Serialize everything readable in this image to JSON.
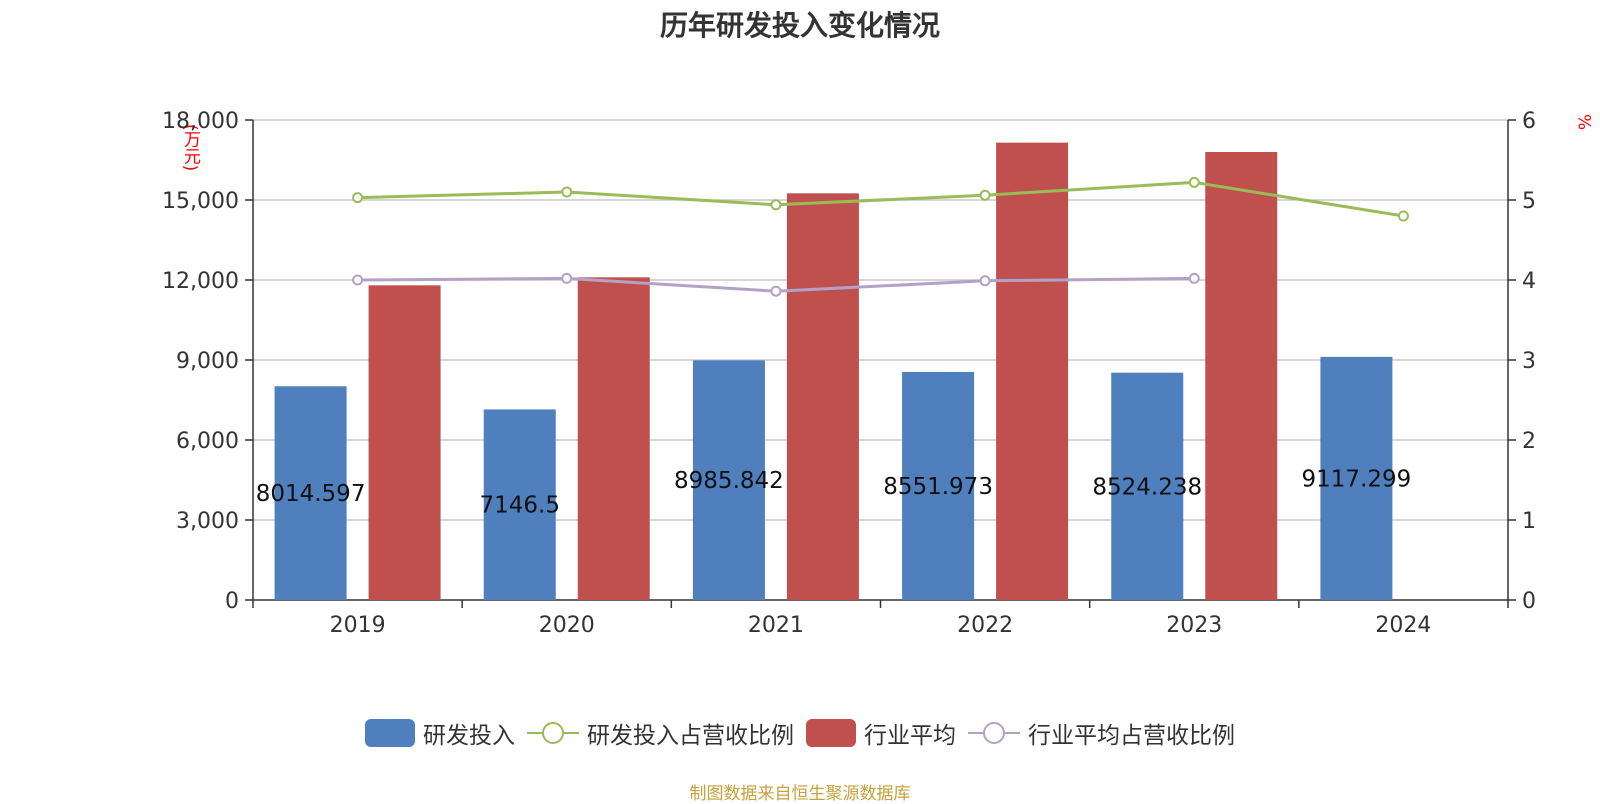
{
  "chart_data": {
    "type": "bar",
    "title": "历年研发投入变化情况",
    "categories": [
      "2019",
      "2020",
      "2021",
      "2022",
      "2023",
      "2024"
    ],
    "y_left": {
      "label": "(万元)",
      "ylim": [
        0,
        18000
      ],
      "ticks": [
        0,
        3000,
        6000,
        9000,
        12000,
        15000,
        18000
      ],
      "tick_labels": [
        "0",
        "3,000",
        "6,000",
        "9,000",
        "12,000",
        "15,000",
        "18,000"
      ]
    },
    "y_right": {
      "label": "%",
      "ylim": [
        0,
        6
      ],
      "ticks": [
        0,
        1,
        2,
        3,
        4,
        5,
        6
      ],
      "tick_labels": [
        "0",
        "1",
        "2",
        "3",
        "4",
        "5",
        "6"
      ]
    },
    "grid": true,
    "legend_position": "bottom",
    "series": [
      {
        "name": "研发投入",
        "type": "bar",
        "axis": "left",
        "color": "#4f7fbd",
        "values": [
          8014.597,
          7146.5,
          8985.842,
          8551.973,
          8524.238,
          9117.299
        ],
        "data_labels": [
          "8014.597",
          "7146.5",
          "8985.842",
          "8551.973",
          "8524.238",
          "9117.299"
        ]
      },
      {
        "name": "研发投入占营收比例",
        "type": "line",
        "axis": "right",
        "color": "#9bbb59",
        "values": [
          5.03,
          5.1,
          4.94,
          5.06,
          5.22,
          4.8
        ]
      },
      {
        "name": "行业平均",
        "type": "bar",
        "axis": "left",
        "color": "#c0504d",
        "values": [
          11800,
          12100,
          15250,
          17150,
          16800,
          null
        ]
      },
      {
        "name": "行业平均占营收比例",
        "type": "line",
        "axis": "right",
        "color": "#b3a2c7",
        "values": [
          4.0,
          4.02,
          3.86,
          3.99,
          4.02,
          null
        ]
      }
    ]
  },
  "legend": {
    "items": [
      "研发投入",
      "研发投入占营收比例",
      "行业平均",
      "行业平均占营收比例"
    ]
  },
  "source_note": "制图数据来自恒生聚源数据库"
}
